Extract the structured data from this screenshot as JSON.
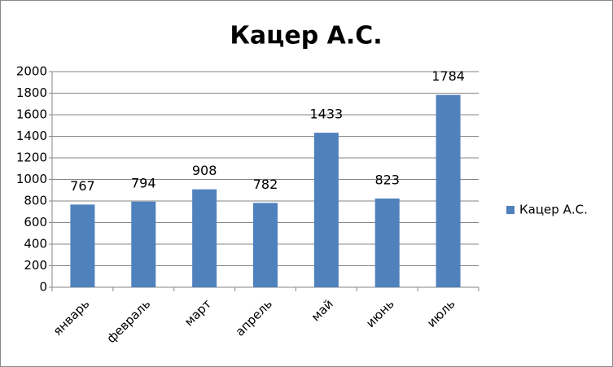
{
  "chart_data": {
    "type": "bar",
    "title": "Кацер А.С.",
    "categories": [
      "январь",
      "февраль",
      "март",
      "апрель",
      "май",
      "июнь",
      "июль"
    ],
    "series": [
      {
        "name": "Кацер А.С.",
        "color": "#4f81bd",
        "values": [
          767,
          794,
          908,
          782,
          1433,
          823,
          1784
        ]
      }
    ],
    "ylim": [
      0,
      2000
    ],
    "yticks": [
      0,
      200,
      400,
      600,
      800,
      1000,
      1200,
      1400,
      1600,
      1800,
      2000
    ],
    "grid": true,
    "legend": "right"
  }
}
